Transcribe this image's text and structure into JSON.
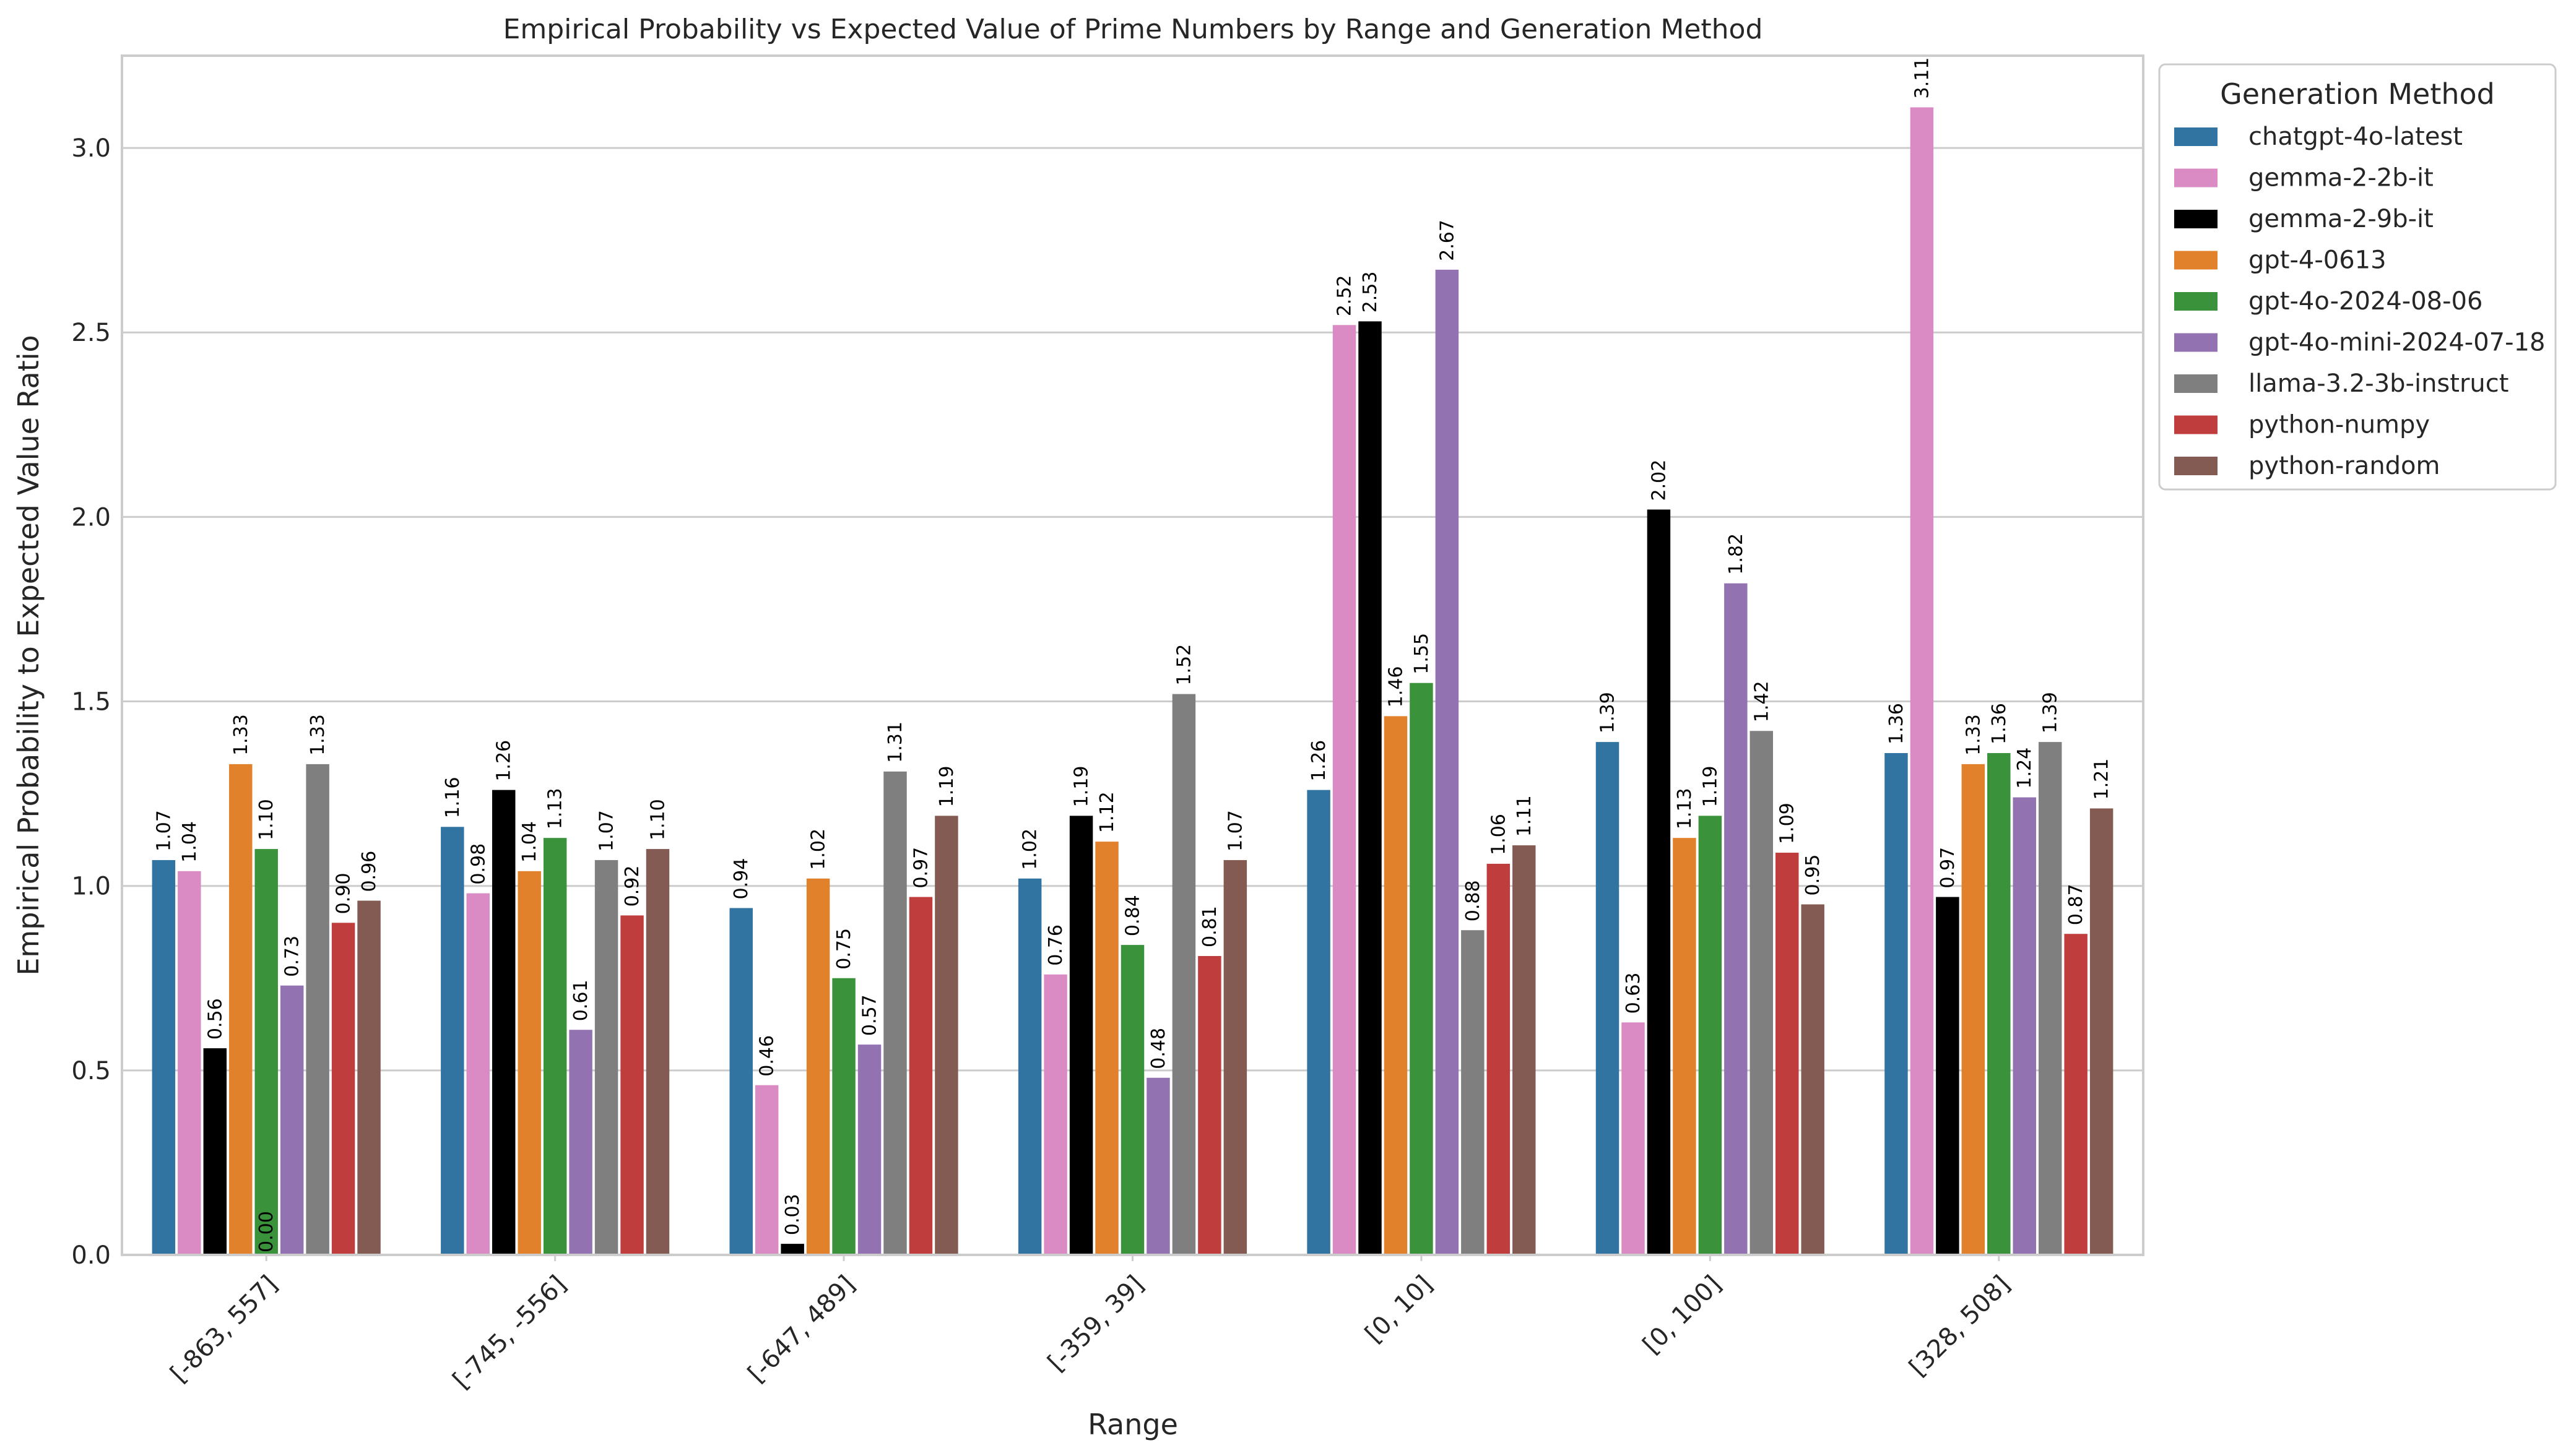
{
  "chart_data": {
    "type": "bar",
    "title": "Empirical Probability vs Expected Value of Prime Numbers by Range and Generation Method",
    "xlabel": "Range",
    "ylabel": "Empirical Probability to Expected Value Ratio",
    "ylim": [
      0,
      3.25
    ],
    "yticks": [
      "0.0",
      "0.5",
      "1.0",
      "1.5",
      "2.0",
      "2.5",
      "3.0"
    ],
    "grid": "horizontal",
    "legend_title": "Generation Method",
    "legend_position": "top-right outside",
    "categories": [
      "[-863, 557]",
      "[-745, -556]",
      "[-647, 489]",
      "[-359, 39]",
      "[0, 10]",
      "[0, 100]",
      "[328, 508]"
    ],
    "series": [
      {
        "name": "chatgpt-4o-latest",
        "color": "#3274a1",
        "values": [
          1.07,
          1.16,
          0.94,
          1.02,
          1.26,
          1.39,
          1.36
        ],
        "labels": [
          "1.07",
          "1.16",
          "0.94",
          "1.02",
          "1.26",
          "1.39",
          "1.36"
        ]
      },
      {
        "name": "gemma-2-2b-it",
        "color": "#da8bc3",
        "values": [
          1.04,
          0.98,
          0.46,
          0.76,
          2.52,
          0.63,
          3.11
        ],
        "labels": [
          "1.04",
          "0.98",
          "0.46",
          "0.76",
          "2.52",
          "0.63",
          "3.11"
        ]
      },
      {
        "name": "gemma-2-9b-it",
        "color": "#000000",
        "values": [
          0.56,
          1.26,
          0.03,
          1.19,
          2.53,
          2.02,
          0.97
        ],
        "labels": [
          "0.56",
          "1.26",
          "0.03",
          "1.19",
          "2.53",
          "2.02",
          "0.97"
        ]
      },
      {
        "name": "gpt-4-0613",
        "color": "#e1812c",
        "values": [
          1.33,
          1.04,
          1.02,
          1.12,
          1.46,
          1.13,
          1.33
        ],
        "labels": [
          "1.33",
          "1.04",
          "1.02",
          "1.12",
          "1.46",
          "1.13",
          "1.33"
        ]
      },
      {
        "name": "gpt-4o-2024-08-06",
        "color": "#3a923a",
        "values": [
          1.1,
          1.13,
          0.75,
          0.84,
          1.55,
          1.19,
          1.36
        ],
        "labels": [
          "1.10",
          "1.13",
          "0.75",
          "0.84",
          "1.55",
          "1.19",
          "1.36"
        ]
      },
      {
        "name": "gpt-4o-mini-2024-07-18",
        "color": "#9372b2",
        "values": [
          0.73,
          0.61,
          0.57,
          0.48,
          2.67,
          1.82,
          1.24
        ],
        "labels": [
          "0.73",
          "0.61",
          "0.57",
          "0.48",
          "2.67",
          "1.82",
          "1.24"
        ]
      },
      {
        "name": "llama-3.2-3b-instruct",
        "color": "#7f7f7f",
        "values": [
          1.33,
          1.07,
          1.31,
          1.52,
          0.88,
          1.42,
          1.39
        ],
        "labels": [
          "1.33",
          "1.07",
          "1.31",
          "1.52",
          "0.88",
          "1.42",
          "1.39"
        ]
      },
      {
        "name": "python-numpy",
        "color": "#c03d3e",
        "values": [
          0.9,
          0.92,
          0.97,
          0.81,
          1.06,
          1.09,
          0.87
        ],
        "labels": [
          "0.90",
          "0.92",
          "0.97",
          "0.81",
          "1.06",
          "1.09",
          "0.87"
        ]
      },
      {
        "name": "python-random",
        "color": "#845b53",
        "values": [
          0.96,
          1.1,
          1.19,
          1.07,
          1.11,
          0.95,
          1.21
        ],
        "labels": [
          "0.96",
          "1.10",
          "1.19",
          "1.07",
          "1.11",
          "0.95",
          "1.21"
        ]
      }
    ],
    "extra_labels": [
      {
        "category_index": 0,
        "series_index": 4,
        "text": "0.00"
      }
    ]
  }
}
